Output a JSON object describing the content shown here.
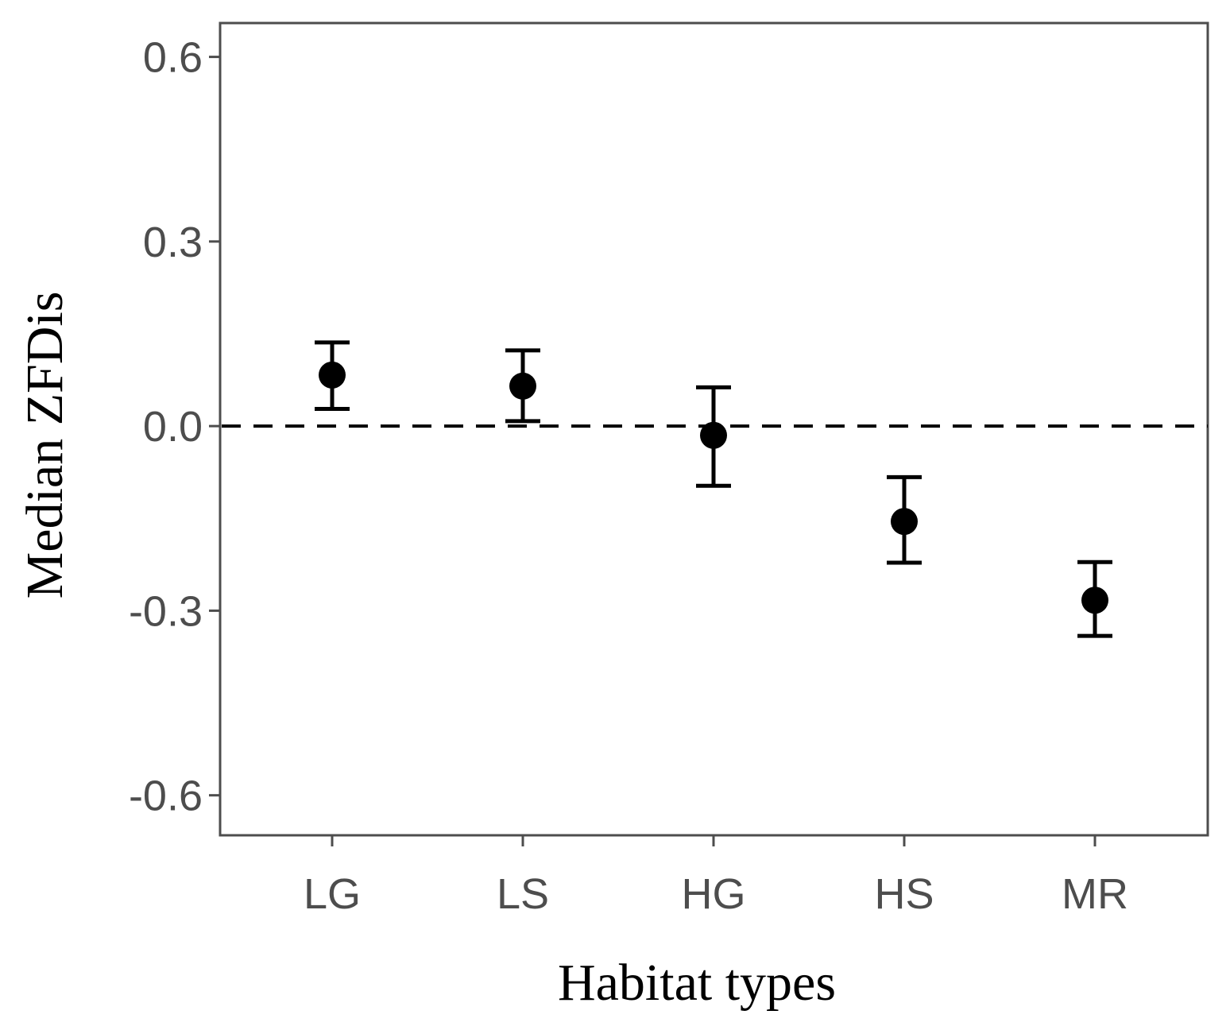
{
  "chart_data": {
    "type": "scatter",
    "subtype": "point-with-error-bars",
    "title": "",
    "xlabel": "Habitat types",
    "ylabel": "Median ZFDis",
    "categories": [
      "LG",
      "LS",
      "HG",
      "HS",
      "MR"
    ],
    "values": [
      0.083,
      0.065,
      -0.015,
      -0.155,
      -0.283
    ],
    "error_low": [
      0.028,
      0.008,
      -0.097,
      -0.222,
      -0.341
    ],
    "error_high": [
      0.136,
      0.123,
      0.063,
      -0.083,
      -0.221
    ],
    "ylim": [
      -0.665,
      0.655
    ],
    "yticks": [
      -0.6,
      -0.3,
      0.0,
      0.3,
      0.6
    ],
    "ytick_labels": [
      "-0.6",
      "-0.3",
      "0.0",
      "0.3",
      "0.6"
    ],
    "reference_line": {
      "y": 0.0,
      "style": "dashed"
    },
    "grid": false,
    "legend": "none",
    "colors": {
      "points": "#000000",
      "axis": "#4d4d4d",
      "tick_text": "#4d4d4d"
    }
  }
}
